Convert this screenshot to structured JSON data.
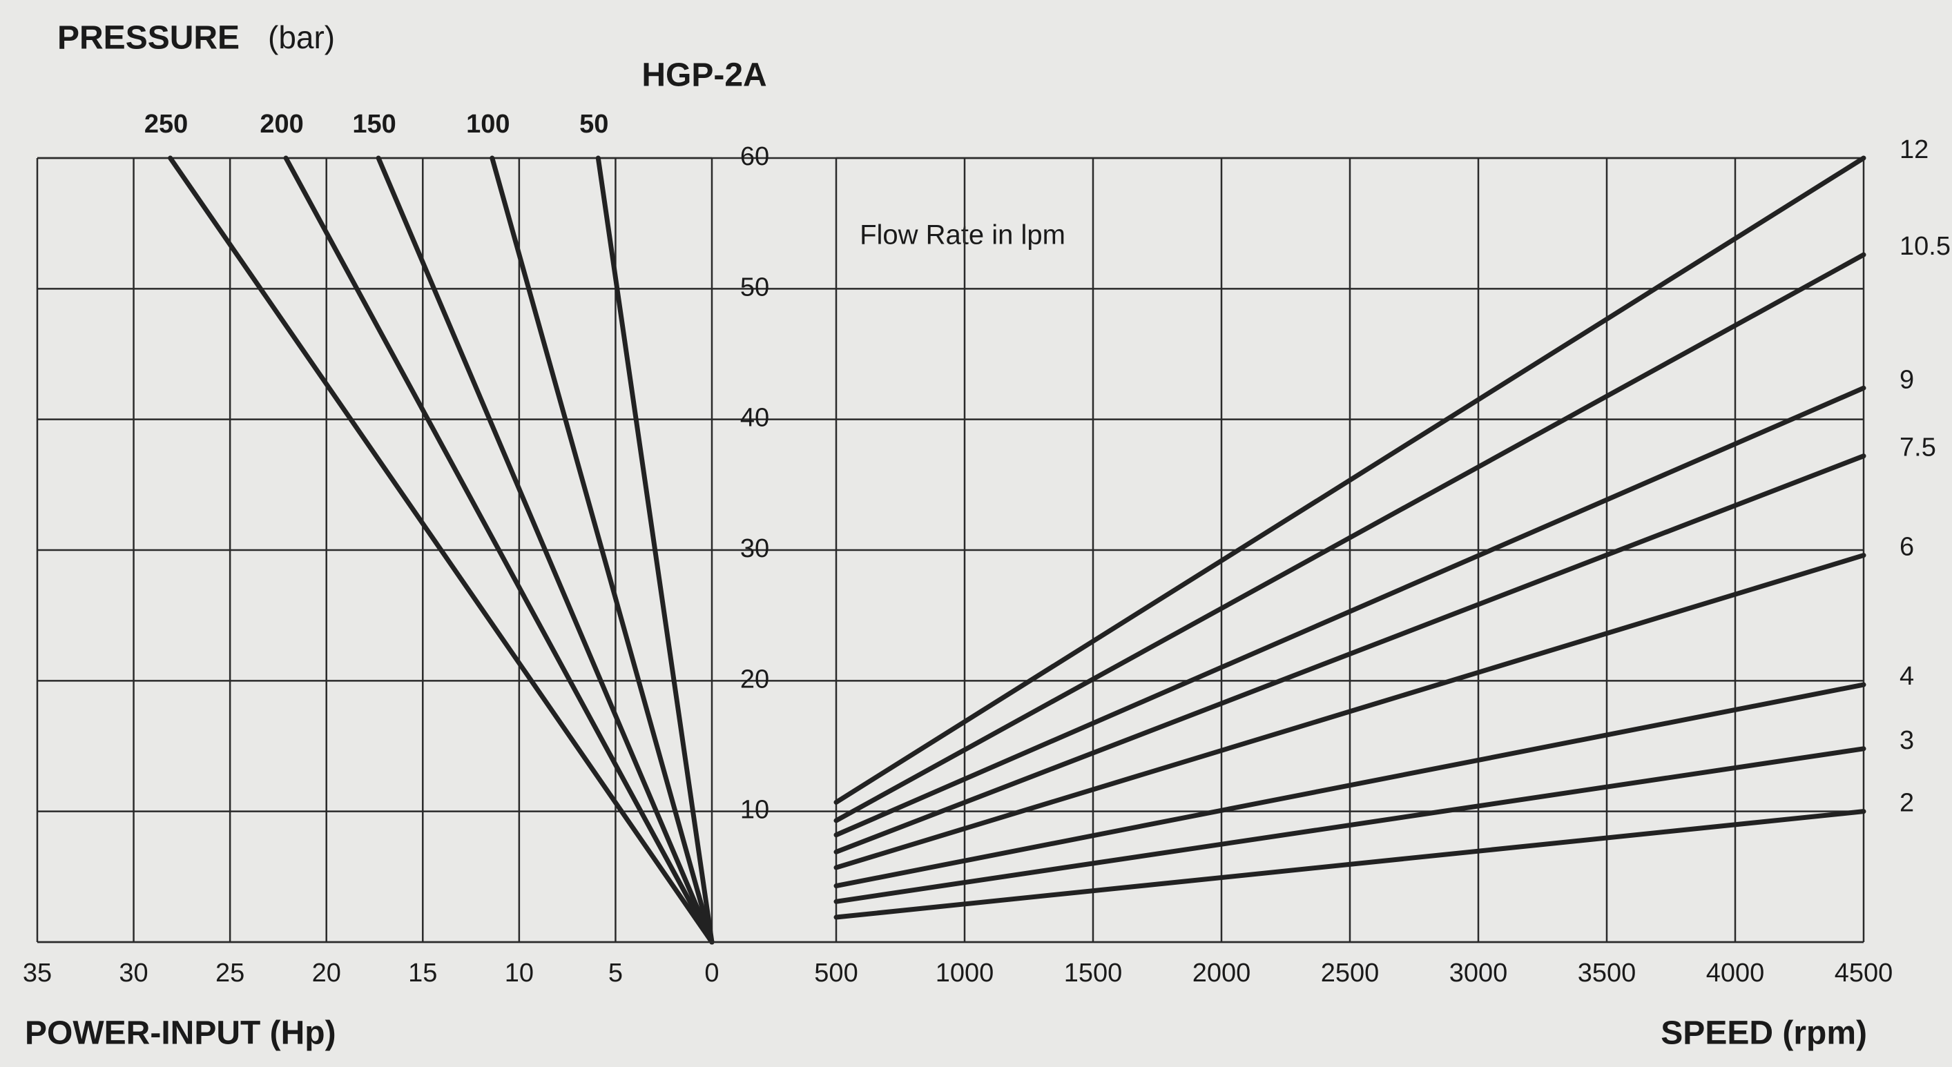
{
  "title": "HGP-2A",
  "chart_data": [
    {
      "type": "line",
      "legend_title": "PRESSURE",
      "legend_unit": "(bar)",
      "xlabel": "POWER-INPUT (Hp)",
      "xlim": [
        35,
        0
      ],
      "xticks": [
        35,
        30,
        25,
        20,
        15,
        10,
        5,
        0
      ],
      "ylim": [
        0,
        60
      ],
      "yticks": [
        10,
        20,
        30,
        40,
        50,
        60
      ],
      "grid": true,
      "color": "#222222",
      "series": [
        {
          "name": "250",
          "x": [
            0,
            28.1
          ],
          "values": [
            0,
            60
          ]
        },
        {
          "name": "200",
          "x": [
            0,
            22.1
          ],
          "values": [
            0,
            60
          ]
        },
        {
          "name": "150",
          "x": [
            0,
            17.3
          ],
          "values": [
            0,
            60
          ]
        },
        {
          "name": "100",
          "x": [
            0,
            11.4
          ],
          "values": [
            0,
            60
          ]
        },
        {
          "name": "50",
          "x": [
            0,
            5.9
          ],
          "values": [
            0,
            60
          ]
        }
      ]
    },
    {
      "type": "line",
      "annotation": "Flow Rate in  lpm",
      "xlabel": "SPEED (rpm)",
      "xlim": [
        500,
        4500
      ],
      "xticks": [
        500,
        1000,
        1500,
        2000,
        2500,
        3000,
        3500,
        4000,
        4500
      ],
      "ylim": [
        0,
        60
      ],
      "grid": true,
      "color": "#222222",
      "series": [
        {
          "name": "12",
          "x": [
            500,
            4500
          ],
          "values": [
            10.7,
            60
          ]
        },
        {
          "name": "10.5",
          "x": [
            500,
            4500
          ],
          "values": [
            9.3,
            52.6
          ]
        },
        {
          "name": "9",
          "x": [
            500,
            4500
          ],
          "values": [
            8.2,
            42.4
          ]
        },
        {
          "name": "7.5",
          "x": [
            500,
            4500
          ],
          "values": [
            6.9,
            37.2
          ]
        },
        {
          "name": "6",
          "x": [
            500,
            4500
          ],
          "values": [
            5.7,
            29.6
          ]
        },
        {
          "name": "4",
          "x": [
            500,
            4500
          ],
          "values": [
            4.3,
            19.7
          ]
        },
        {
          "name": "3",
          "x": [
            500,
            4500
          ],
          "values": [
            3.1,
            14.8
          ]
        },
        {
          "name": "2",
          "x": [
            500,
            4500
          ],
          "values": [
            1.9,
            10
          ]
        }
      ]
    }
  ]
}
